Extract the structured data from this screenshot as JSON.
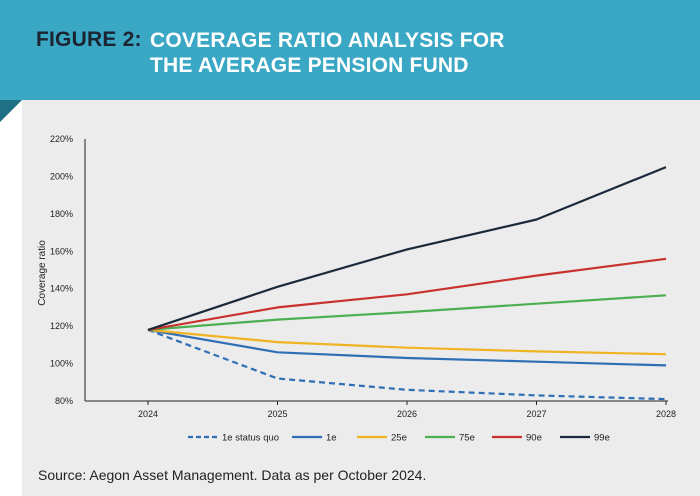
{
  "header": {
    "figure_label": "FIGURE 2:",
    "title_line1": "COVERAGE RATIO ANALYSIS FOR",
    "title_line2": "THE AVERAGE PENSION FUND"
  },
  "source": "Source: Aegon Asset Management. Data as per October 2024.",
  "colors": {
    "header_bg": "#3aa7c4",
    "panel_bg": "#ececec"
  },
  "chart_data": {
    "type": "line",
    "title": "Coverage ratio analysis for the average pension fund",
    "xlabel": "",
    "ylabel": "Coverage ratio",
    "x": [
      "2024",
      "2025",
      "2026",
      "2027",
      "2028"
    ],
    "ylim": [
      80,
      220
    ],
    "yticks": [
      80,
      100,
      120,
      140,
      160,
      180,
      200,
      220
    ],
    "ytick_labels": [
      "80%",
      "100%",
      "120%",
      "140%",
      "160%",
      "180%",
      "200%",
      "220%"
    ],
    "grid": false,
    "legend_position": "bottom",
    "series": [
      {
        "name": "1e status quo",
        "color": "#2f6fb5",
        "dashed": true,
        "values": [
          118,
          92,
          86,
          83,
          81
        ]
      },
      {
        "name": "1e",
        "color": "#2f6fb5",
        "dashed": false,
        "values": [
          118,
          106,
          103,
          101,
          99
        ]
      },
      {
        "name": "25e",
        "color": "#f0b323",
        "dashed": false,
        "values": [
          118,
          111.5,
          108.5,
          106.5,
          105
        ]
      },
      {
        "name": "75e",
        "color": "#4caf50",
        "dashed": false,
        "values": [
          118,
          123.5,
          127.5,
          132,
          136.5
        ]
      },
      {
        "name": "90e",
        "color": "#c8312d",
        "dashed": false,
        "values": [
          118,
          130,
          137,
          147,
          156
        ]
      },
      {
        "name": "99e",
        "color": "#1b2a3a",
        "dashed": false,
        "values": [
          118,
          141,
          161,
          177,
          205
        ]
      }
    ]
  }
}
